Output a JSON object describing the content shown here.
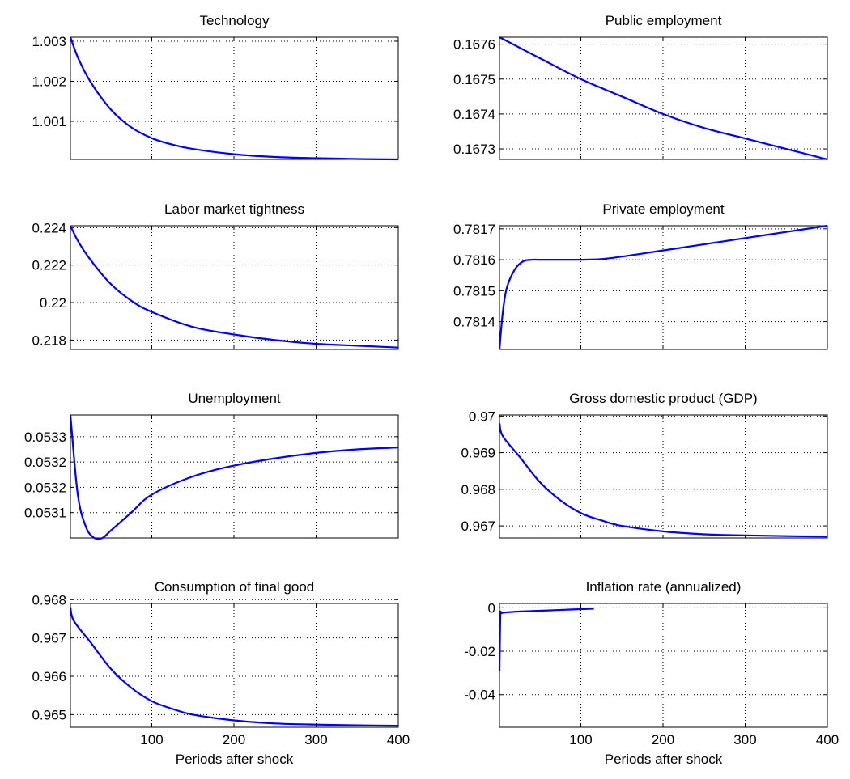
{
  "figure": {
    "line_color": "#0000ff",
    "xlabel": "Periods after shock",
    "xticks": [
      "100",
      "200",
      "300",
      "400"
    ]
  },
  "chart_data": [
    {
      "type": "line",
      "title": "Technology",
      "xlim": [
        1,
        400
      ],
      "ylim": [
        1.00005,
        1.0031
      ],
      "yticks": [
        "1.001",
        "1.002",
        "1.003"
      ],
      "ytick_values": [
        1.001,
        1.002,
        1.003
      ],
      "grid": true,
      "x": [
        1,
        10,
        25,
        50,
        75,
        100,
        125,
        150,
        200,
        250,
        300,
        350,
        400
      ],
      "y": [
        1.0031,
        1.0026,
        1.002,
        1.0013,
        1.00085,
        1.00058,
        1.00042,
        1.00031,
        1.00018,
        1.00011,
        1.00008,
        1.00006,
        1.00005
      ]
    },
    {
      "type": "line",
      "title": "Public employment",
      "xlim": [
        1,
        400
      ],
      "ylim": [
        0.16727,
        0.16762
      ],
      "yticks": [
        "0.1673",
        "0.1674",
        "0.1675",
        "0.1676"
      ],
      "ytick_values": [
        0.1673,
        0.1674,
        0.1675,
        0.1676
      ],
      "grid": true,
      "x": [
        1,
        50,
        100,
        150,
        200,
        250,
        300,
        350,
        400
      ],
      "y": [
        0.16762,
        0.16756,
        0.1675,
        0.16745,
        0.1674,
        0.16736,
        0.16733,
        0.1673,
        0.16727
      ]
    },
    {
      "type": "line",
      "title": "Labor market tightness",
      "xlim": [
        1,
        400
      ],
      "ylim": [
        0.2175,
        0.2241
      ],
      "yticks": [
        "0.218",
        "0.22",
        "0.222",
        "0.224"
      ],
      "ytick_values": [
        0.218,
        0.22,
        0.222,
        0.224
      ],
      "grid": true,
      "x": [
        1,
        10,
        25,
        50,
        75,
        100,
        150,
        200,
        250,
        300,
        350,
        400
      ],
      "y": [
        0.2241,
        0.2233,
        0.2223,
        0.221,
        0.2201,
        0.2195,
        0.2187,
        0.2183,
        0.218,
        0.2178,
        0.2177,
        0.2176
      ]
    },
    {
      "type": "line",
      "title": "Private employment",
      "xlim": [
        1,
        400
      ],
      "ylim": [
        0.78131,
        0.78171
      ],
      "yticks": [
        "0.7814",
        "0.7815",
        "0.7816",
        "0.7817"
      ],
      "ytick_values": [
        0.7814,
        0.7815,
        0.7816,
        0.7817
      ],
      "grid": true,
      "x": [
        1,
        5,
        10,
        20,
        30,
        40,
        50,
        75,
        100,
        125,
        150,
        200,
        250,
        300,
        350,
        400
      ],
      "y": [
        0.78131,
        0.78143,
        0.78151,
        0.78157,
        0.781595,
        0.7816,
        0.7816,
        0.7816,
        0.7816,
        0.781602,
        0.78161,
        0.78163,
        0.78165,
        0.78167,
        0.78169,
        0.78171
      ]
    },
    {
      "type": "line",
      "title": "Unemployment",
      "xlim": [
        1,
        400
      ],
      "ylim": [
        0.05304,
        0.05338
      ],
      "yticks": [
        "0.0531",
        "0.0532",
        "0.0532",
        "0.0533"
      ],
      "ytick_values": [
        0.05311,
        0.05318,
        0.05325,
        0.05332
      ],
      "grid": true,
      "x": [
        1,
        10,
        20,
        30,
        40,
        50,
        75,
        100,
        150,
        200,
        250,
        300,
        350,
        400
      ],
      "y": [
        0.05338,
        0.05316,
        0.05307,
        0.05304,
        0.05304,
        0.05306,
        0.05311,
        0.05316,
        0.05321,
        0.05324,
        0.05326,
        0.053275,
        0.053285,
        0.05329
      ]
    },
    {
      "type": "line",
      "title": "Gross domestic product (GDP)",
      "xlim": [
        1,
        400
      ],
      "ylim": [
        0.96667,
        0.97003
      ],
      "yticks": [
        "0.967",
        "0.968",
        "0.969",
        "0.97"
      ],
      "ytick_values": [
        0.967,
        0.968,
        0.969,
        0.97
      ],
      "grid": true,
      "x": [
        1,
        5,
        25,
        50,
        75,
        100,
        125,
        150,
        200,
        250,
        300,
        350,
        400
      ],
      "y": [
        0.9698,
        0.96945,
        0.9689,
        0.9682,
        0.9677,
        0.96735,
        0.96715,
        0.967,
        0.96685,
        0.96677,
        0.96674,
        0.96672,
        0.96671
      ]
    },
    {
      "type": "line",
      "title": "Consumption of final good",
      "xlim": [
        1,
        400
      ],
      "ylim": [
        0.96467,
        0.9679
      ],
      "yticks": [
        "0.965",
        "0.966",
        "0.967",
        "0.968"
      ],
      "ytick_values": [
        0.965,
        0.966,
        0.967,
        0.968
      ],
      "grid": true,
      "x": [
        1,
        5,
        25,
        50,
        75,
        100,
        125,
        150,
        200,
        250,
        300,
        350,
        400
      ],
      "y": [
        0.9678,
        0.96745,
        0.9669,
        0.9662,
        0.9657,
        0.96535,
        0.96515,
        0.965,
        0.96485,
        0.96477,
        0.96474,
        0.96472,
        0.96471
      ]
    },
    {
      "type": "line",
      "title": "Inflation rate (annualized)",
      "xlim": [
        1,
        400
      ],
      "ylim": [
        -0.055,
        0.002
      ],
      "yticks": [
        "-0.04",
        "-0.02",
        "0"
      ],
      "ytick_values": [
        -0.04,
        -0.02,
        0
      ],
      "grid": true,
      "x": [
        1,
        2,
        3,
        5,
        10,
        20,
        40,
        60,
        80,
        100,
        116
      ],
      "y": [
        -0.029,
        -0.004,
        -0.0026,
        -0.0023,
        -0.0021,
        -0.0018,
        -0.0015,
        -0.0012,
        -0.0009,
        -0.0006,
        -0.0004
      ]
    }
  ]
}
